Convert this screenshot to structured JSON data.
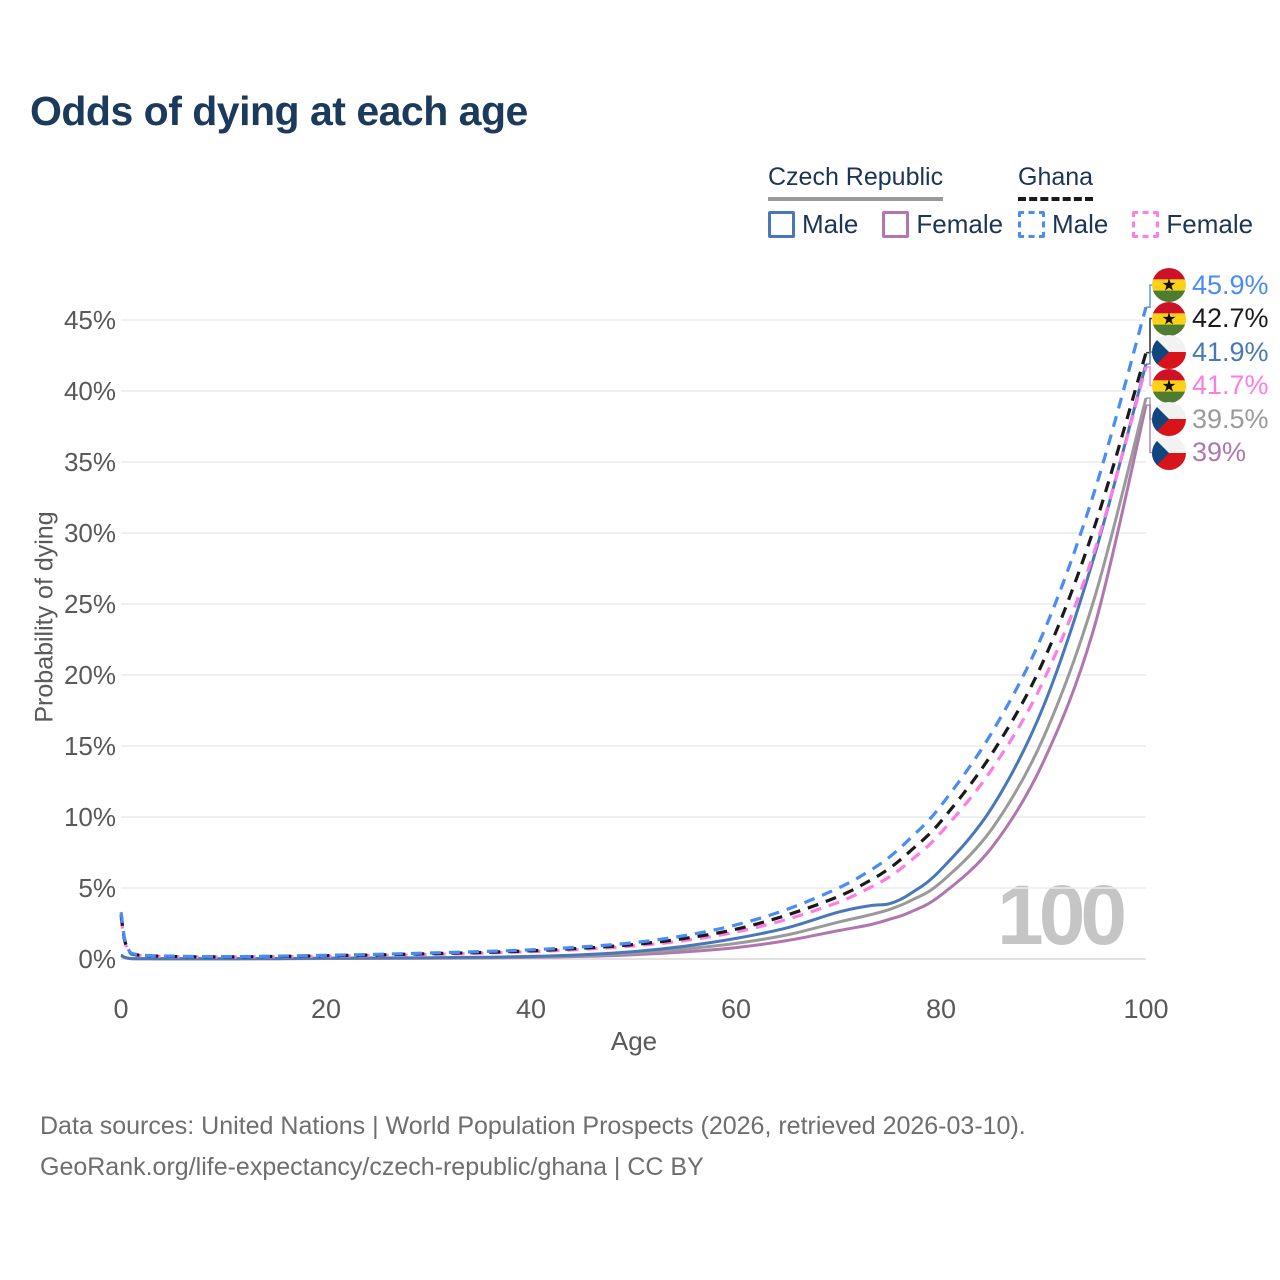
{
  "title": "Odds of dying at each age",
  "watermark": "100",
  "legend": {
    "groups": [
      {
        "label": "Czech Republic",
        "line_style": "solid",
        "line_color": "#9a9a9a",
        "items": [
          {
            "label": "Male",
            "color": "#4878b8",
            "dashed": false
          },
          {
            "label": "Female",
            "color": "#b076ae",
            "dashed": false
          }
        ]
      },
      {
        "label": "Ghana",
        "line_style": "dashed",
        "line_color": "#1a1a1a",
        "items": [
          {
            "label": "Male",
            "color": "#4b8bf4",
            "dashed": true
          },
          {
            "label": "Female",
            "color": "#fc7de4",
            "dashed": true
          }
        ]
      }
    ]
  },
  "axes": {
    "y": {
      "label": "Probability of dying",
      "tick_values": [
        0,
        5,
        10,
        15,
        20,
        25,
        30,
        35,
        40,
        45
      ],
      "tick_labels": [
        "0%",
        "5%",
        "10%",
        "15%",
        "20%",
        "25%",
        "30%",
        "35%",
        "40%",
        "45%"
      ]
    },
    "x": {
      "label": "Age",
      "tick_values": [
        0,
        20,
        40,
        60,
        80,
        100
      ],
      "tick_labels": [
        "0",
        "20",
        "40",
        "60",
        "80",
        "100"
      ]
    }
  },
  "chart_data": {
    "type": "line",
    "title": "Odds of dying at each age",
    "xlabel": "Age",
    "ylabel": "Probability of dying",
    "xlim": [
      0,
      100
    ],
    "ylim_pct": [
      0,
      47
    ],
    "grid": "horizontal",
    "legend_position": "top-right",
    "ages": [
      0,
      1,
      5,
      10,
      15,
      20,
      25,
      30,
      35,
      40,
      45,
      50,
      55,
      60,
      65,
      70,
      73,
      75,
      77,
      80,
      85,
      90,
      95,
      100
    ],
    "series": [
      {
        "name": "Czech Republic Female",
        "country": "Czech Republic",
        "flag": "czech-flag-icon",
        "color": "#b076ae",
        "dashed": false,
        "end_label": "39%",
        "values_pct": [
          0.24,
          0.025,
          0.015,
          0.015,
          0.02,
          0.035,
          0.04,
          0.05,
          0.07,
          0.11,
          0.18,
          0.3,
          0.5,
          0.8,
          1.3,
          2.0,
          2.4,
          2.8,
          3.3,
          4.5,
          7.9,
          13.9,
          23.5,
          39.0
        ]
      },
      {
        "name": "Czech Republic",
        "country": "Czech Republic",
        "flag": "czech-flag-icon",
        "color": "#9a9a9a",
        "dashed": false,
        "end_label": "39.5%",
        "values_pct": [
          0.26,
          0.03,
          0.015,
          0.015,
          0.025,
          0.045,
          0.055,
          0.07,
          0.1,
          0.15,
          0.24,
          0.4,
          0.7,
          1.1,
          1.7,
          2.6,
          3.1,
          3.5,
          4.1,
          5.4,
          9.2,
          15.6,
          25.5,
          39.5
        ]
      },
      {
        "name": "Czech Republic Male",
        "country": "Czech Republic",
        "flag": "czech-flag-icon",
        "color": "#4878b8",
        "dashed": false,
        "end_label": "41.9%",
        "values_pct": [
          0.28,
          0.03,
          0.02,
          0.02,
          0.03,
          0.06,
          0.07,
          0.09,
          0.12,
          0.18,
          0.3,
          0.52,
          0.9,
          1.45,
          2.2,
          3.3,
          3.75,
          3.9,
          4.6,
          6.3,
          10.7,
          17.8,
          28.5,
          41.9
        ]
      },
      {
        "name": "Ghana Female",
        "country": "Ghana",
        "flag": "ghana-flag-icon",
        "color": "#fc7de4",
        "dashed": true,
        "end_label": "41.7%",
        "values_pct": [
          2.9,
          0.34,
          0.17,
          0.14,
          0.16,
          0.2,
          0.25,
          0.32,
          0.41,
          0.52,
          0.68,
          0.92,
          1.3,
          1.9,
          2.8,
          4.0,
          5.0,
          5.8,
          6.9,
          8.9,
          13.4,
          19.6,
          28.8,
          41.7
        ]
      },
      {
        "name": "Ghana",
        "country": "Ghana",
        "flag": "ghana-flag-icon",
        "color": "#1a1a1a",
        "dashed": true,
        "end_label": "42.7%",
        "values_pct": [
          3.1,
          0.37,
          0.18,
          0.15,
          0.18,
          0.23,
          0.29,
          0.37,
          0.46,
          0.58,
          0.76,
          1.02,
          1.45,
          2.1,
          3.1,
          4.4,
          5.5,
          6.4,
          7.6,
          9.7,
          14.5,
          21.0,
          30.5,
          42.7
        ]
      },
      {
        "name": "Ghana Male",
        "country": "Ghana",
        "flag": "ghana-flag-icon",
        "color": "#4b8bf4",
        "dashed": true,
        "end_label": "45.9%",
        "values_pct": [
          3.3,
          0.4,
          0.2,
          0.17,
          0.2,
          0.26,
          0.33,
          0.42,
          0.52,
          0.65,
          0.85,
          1.15,
          1.65,
          2.4,
          3.5,
          5.0,
          6.2,
          7.2,
          8.5,
          10.8,
          16.0,
          23.0,
          33.0,
          45.9
        ]
      }
    ]
  },
  "footer": {
    "line1": "Data sources: United Nations | World Population Prospects (2026, retrieved 2026-03-10).",
    "line2": "GeoRank.org/life-expectancy/czech-republic/ghana | CC BY"
  }
}
